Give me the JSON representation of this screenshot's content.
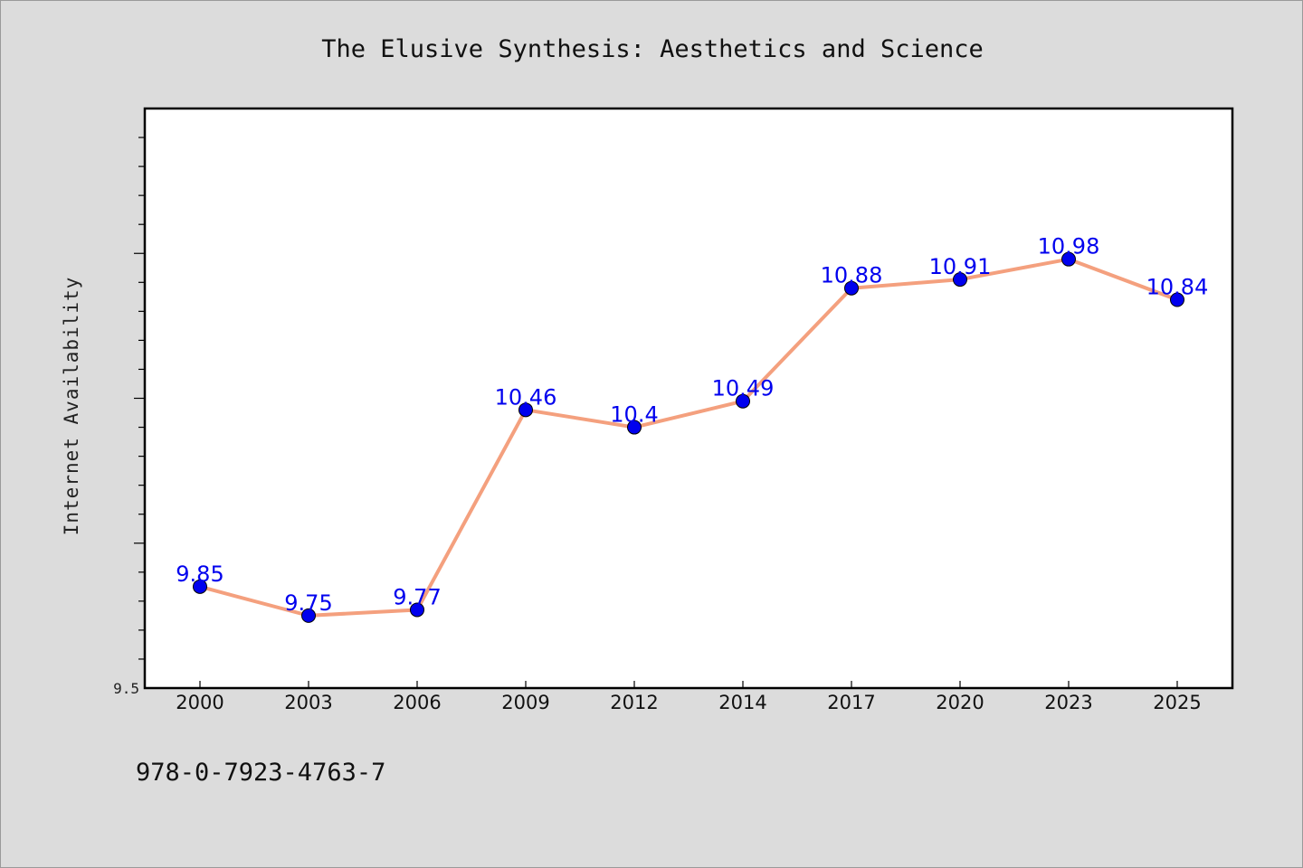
{
  "chart_data": {
    "type": "line",
    "title": "The Elusive Synthesis: Aesthetics and Science",
    "ylabel": "Internet Availability",
    "xlabel": "",
    "categories": [
      "2000",
      "2003",
      "2006",
      "2009",
      "2012",
      "2014",
      "2017",
      "2020",
      "2023",
      "2025"
    ],
    "series": [
      {
        "values": [
          9.85,
          9.75,
          9.77,
          10.46,
          10.4,
          10.49,
          10.88,
          10.91,
          10.98,
          10.84
        ]
      }
    ],
    "ylim": [
      9.5,
      11.5
    ],
    "ytick_label": "9.5",
    "data_labels": [
      "9.85",
      "9.75",
      "9.77",
      "10.46",
      "10.4",
      "10.49",
      "10.88",
      "10.91",
      "10.98",
      "10.84"
    ],
    "grid": false,
    "line_color": "#f4a07e",
    "marker_color": "#0000ee",
    "label_color": "#0000ee"
  },
  "footer": {
    "text": "978-0-7923-4763-7"
  }
}
